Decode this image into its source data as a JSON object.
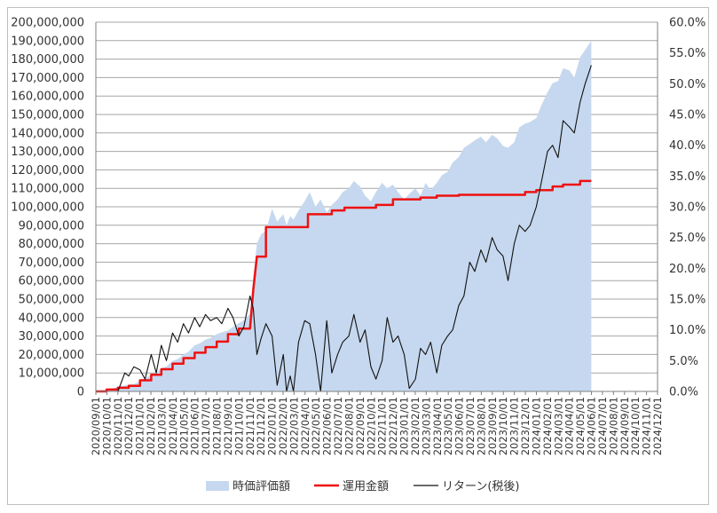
{
  "chart_data": {
    "type": "area",
    "title": "",
    "xlabel": "",
    "ylabel": "",
    "ylim": [
      0,
      200000000
    ],
    "y2lim": [
      0,
      0.6
    ],
    "grid": true,
    "legend_position": "bottom",
    "y_ticks": [
      "0",
      "10,000,000",
      "20,000,000",
      "30,000,000",
      "40,000,000",
      "50,000,000",
      "60,000,000",
      "70,000,000",
      "80,000,000",
      "90,000,000",
      "100,000,000",
      "110,000,000",
      "120,000,000",
      "130,000,000",
      "140,000,000",
      "150,000,000",
      "160,000,000",
      "170,000,000",
      "180,000,000",
      "190,000,000",
      "200,000,000"
    ],
    "y2_ticks": [
      "0.0%",
      "5.0%",
      "10.0%",
      "15.0%",
      "20.0%",
      "25.0%",
      "30.0%",
      "35.0%",
      "40.0%",
      "45.0%",
      "50.0%",
      "55.0%",
      "60.0%"
    ],
    "x_ticks": [
      "2020/09/01",
      "2020/10/01",
      "2020/11/01",
      "2020/12/01",
      "2021/01/01",
      "2021/02/01",
      "2021/03/01",
      "2021/04/01",
      "2021/05/01",
      "2021/06/01",
      "2021/07/01",
      "2021/08/01",
      "2021/09/01",
      "2021/10/01",
      "2021/11/01",
      "2021/12/01",
      "2022/01/01",
      "2022/02/01",
      "2022/03/01",
      "2022/04/01",
      "2022/05/01",
      "2022/06/01",
      "2022/07/01",
      "2022/08/01",
      "2022/09/01",
      "2022/10/01",
      "2022/11/01",
      "2022/12/01",
      "2023/01/01",
      "2023/02/01",
      "2023/03/01",
      "2023/04/01",
      "2023/05/01",
      "2023/06/01",
      "2023/07/01",
      "2023/08/01",
      "2023/09/01",
      "2023/10/01",
      "2023/11/01",
      "2023/12/01",
      "2024/01/01",
      "2024/02/01",
      "2024/03/01",
      "2024/04/01",
      "2024/05/01",
      "2024/06/01",
      "2024/07/01",
      "2024/08/01",
      "2024/09/01",
      "2024/10/01",
      "2024/11/01",
      "2024/12/01"
    ],
    "legend": [
      {
        "name": "時価評価額",
        "color": "#c6d8ef",
        "kind": "area"
      },
      {
        "name": "運用金額",
        "color": "#ee1111",
        "kind": "line"
      },
      {
        "name": "リターン(税後)",
        "color": "#111111",
        "kind": "line"
      }
    ],
    "series": [
      {
        "name": "時価評価額",
        "axis": "left",
        "points": [
          [
            "2020/09/01",
            0
          ],
          [
            "2020/09/15",
            500000
          ],
          [
            "2020/10/01",
            1000000
          ],
          [
            "2020/10/15",
            1500000
          ],
          [
            "2020/11/01",
            2500000
          ],
          [
            "2020/11/15",
            3000000
          ],
          [
            "2020/12/01",
            3800000
          ],
          [
            "2020/12/15",
            4000000
          ],
          [
            "2021/01/01",
            5500000
          ],
          [
            "2021/01/15",
            7000000
          ],
          [
            "2021/02/01",
            9000000
          ],
          [
            "2021/02/15",
            10000000
          ],
          [
            "2021/03/01",
            12500000
          ],
          [
            "2021/03/15",
            13500000
          ],
          [
            "2021/04/01",
            16500000
          ],
          [
            "2021/04/15",
            17500000
          ],
          [
            "2021/05/01",
            20000000
          ],
          [
            "2021/05/15",
            21500000
          ],
          [
            "2021/06/01",
            25000000
          ],
          [
            "2021/06/15",
            26000000
          ],
          [
            "2021/07/01",
            28000000
          ],
          [
            "2021/07/15",
            29000000
          ],
          [
            "2021/08/01",
            31000000
          ],
          [
            "2021/08/15",
            32000000
          ],
          [
            "2021/09/01",
            33000000
          ],
          [
            "2021/09/15",
            35000000
          ],
          [
            "2021/10/01",
            37000000
          ],
          [
            "2021/10/15",
            38500000
          ],
          [
            "2021/11/01",
            42000000
          ],
          [
            "2021/11/10",
            62000000
          ],
          [
            "2021/11/20",
            80000000
          ],
          [
            "2021/12/01",
            85000000
          ],
          [
            "2021/12/15",
            87000000
          ],
          [
            "2022/01/01",
            99000000
          ],
          [
            "2022/01/15",
            92000000
          ],
          [
            "2022/02/01",
            96000000
          ],
          [
            "2022/02/10",
            90000000
          ],
          [
            "2022/02/20",
            95000000
          ],
          [
            "2022/03/01",
            93000000
          ],
          [
            "2022/03/15",
            98000000
          ],
          [
            "2022/04/01",
            103000000
          ],
          [
            "2022/04/15",
            108000000
          ],
          [
            "2022/05/01",
            100000000
          ],
          [
            "2022/05/15",
            104000000
          ],
          [
            "2022/06/01",
            97000000
          ],
          [
            "2022/06/15",
            101000000
          ],
          [
            "2022/07/01",
            104000000
          ],
          [
            "2022/07/15",
            108000000
          ],
          [
            "2022/08/01",
            110000000
          ],
          [
            "2022/08/15",
            114000000
          ],
          [
            "2022/09/01",
            111000000
          ],
          [
            "2022/09/15",
            106000000
          ],
          [
            "2022/10/01",
            103000000
          ],
          [
            "2022/10/15",
            108000000
          ],
          [
            "2022/11/01",
            113000000
          ],
          [
            "2022/11/15",
            110000000
          ],
          [
            "2022/12/01",
            112000000
          ],
          [
            "2022/12/15",
            108000000
          ],
          [
            "2023/01/01",
            104000000
          ],
          [
            "2023/01/15",
            107000000
          ],
          [
            "2023/02/01",
            110000000
          ],
          [
            "2023/02/15",
            106000000
          ],
          [
            "2023/03/01",
            113000000
          ],
          [
            "2023/03/15",
            109000000
          ],
          [
            "2023/04/01",
            113000000
          ],
          [
            "2023/04/15",
            117000000
          ],
          [
            "2023/05/01",
            119000000
          ],
          [
            "2023/05/15",
            124000000
          ],
          [
            "2023/06/01",
            127000000
          ],
          [
            "2023/06/15",
            132000000
          ],
          [
            "2023/07/01",
            134000000
          ],
          [
            "2023/07/15",
            136000000
          ],
          [
            "2023/08/01",
            138000000
          ],
          [
            "2023/08/15",
            135000000
          ],
          [
            "2023/09/01",
            139000000
          ],
          [
            "2023/09/15",
            137000000
          ],
          [
            "2023/10/01",
            133000000
          ],
          [
            "2023/10/15",
            132000000
          ],
          [
            "2023/11/01",
            135000000
          ],
          [
            "2023/11/15",
            143000000
          ],
          [
            "2023/12/01",
            145000000
          ],
          [
            "2023/12/15",
            146000000
          ],
          [
            "2024/01/01",
            148000000
          ],
          [
            "2024/01/15",
            155000000
          ],
          [
            "2024/02/01",
            162000000
          ],
          [
            "2024/02/15",
            167000000
          ],
          [
            "2024/03/01",
            168000000
          ],
          [
            "2024/03/15",
            175000000
          ],
          [
            "2024/04/01",
            174000000
          ],
          [
            "2024/04/15",
            170000000
          ],
          [
            "2024/05/01",
            181000000
          ],
          [
            "2024/05/15",
            185000000
          ],
          [
            "2024/06/01",
            190000000
          ]
        ]
      },
      {
        "name": "運用金額",
        "axis": "left",
        "points": [
          [
            "2020/09/01",
            0
          ],
          [
            "2020/10/01",
            0
          ],
          [
            "2020/10/01",
            1000000
          ],
          [
            "2020/11/01",
            1000000
          ],
          [
            "2020/11/01",
            2000000
          ],
          [
            "2020/12/01",
            2000000
          ],
          [
            "2020/12/01",
            3000000
          ],
          [
            "2021/01/01",
            3000000
          ],
          [
            "2021/01/01",
            6000000
          ],
          [
            "2021/02/01",
            6000000
          ],
          [
            "2021/02/01",
            9000000
          ],
          [
            "2021/03/01",
            9000000
          ],
          [
            "2021/03/01",
            12000000
          ],
          [
            "2021/04/01",
            12000000
          ],
          [
            "2021/04/01",
            15000000
          ],
          [
            "2021/05/01",
            15000000
          ],
          [
            "2021/05/01",
            18000000
          ],
          [
            "2021/06/01",
            18000000
          ],
          [
            "2021/06/01",
            21000000
          ],
          [
            "2021/07/01",
            21000000
          ],
          [
            "2021/07/01",
            24000000
          ],
          [
            "2021/08/01",
            24000000
          ],
          [
            "2021/08/01",
            27000000
          ],
          [
            "2021/09/01",
            27000000
          ],
          [
            "2021/09/01",
            31000000
          ],
          [
            "2021/10/01",
            31000000
          ],
          [
            "2021/10/01",
            34000000
          ],
          [
            "2021/11/01",
            34000000
          ],
          [
            "2021/11/10",
            55000000
          ],
          [
            "2021/11/20",
            73000000
          ],
          [
            "2021/12/01",
            73000000
          ],
          [
            "2021/12/15",
            73000000
          ],
          [
            "2021/12/15",
            89000000
          ],
          [
            "2022/04/10",
            89000000
          ],
          [
            "2022/04/10",
            96000000
          ],
          [
            "2022/06/15",
            96000000
          ],
          [
            "2022/06/15",
            98000000
          ],
          [
            "2022/07/20",
            98000000
          ],
          [
            "2022/07/20",
            99500000
          ],
          [
            "2022/10/15",
            99500000
          ],
          [
            "2022/10/15",
            101000000
          ],
          [
            "2022/12/01",
            101000000
          ],
          [
            "2022/12/01",
            104000000
          ],
          [
            "2023/02/15",
            104000000
          ],
          [
            "2023/02/15",
            105000000
          ],
          [
            "2023/04/01",
            105000000
          ],
          [
            "2023/04/01",
            106000000
          ],
          [
            "2023/06/01",
            106000000
          ],
          [
            "2023/06/01",
            106500000
          ],
          [
            "2023/12/01",
            106500000
          ],
          [
            "2023/12/01",
            108000000
          ],
          [
            "2024/01/01",
            108000000
          ],
          [
            "2024/01/01",
            109000000
          ],
          [
            "2024/02/15",
            109000000
          ],
          [
            "2024/02/15",
            111000000
          ],
          [
            "2024/03/15",
            111000000
          ],
          [
            "2024/03/15",
            112000000
          ],
          [
            "2024/05/01",
            112000000
          ],
          [
            "2024/05/01",
            114000000
          ],
          [
            "2024/06/01",
            114000000
          ]
        ]
      },
      {
        "name": "リターン(税後)",
        "axis": "right",
        "points": [
          [
            "2020/09/01",
            0.0
          ],
          [
            "2020/11/01",
            0.0
          ],
          [
            "2020/11/20",
            0.03
          ],
          [
            "2020/12/01",
            0.025
          ],
          [
            "2020/12/15",
            0.04
          ],
          [
            "2021/01/01",
            0.035
          ],
          [
            "2021/01/15",
            0.02
          ],
          [
            "2021/02/01",
            0.06
          ],
          [
            "2021/02/15",
            0.03
          ],
          [
            "2021/03/01",
            0.075
          ],
          [
            "2021/03/15",
            0.05
          ],
          [
            "2021/04/01",
            0.095
          ],
          [
            "2021/04/15",
            0.08
          ],
          [
            "2021/05/01",
            0.11
          ],
          [
            "2021/05/15",
            0.095
          ],
          [
            "2021/06/01",
            0.12
          ],
          [
            "2021/06/15",
            0.105
          ],
          [
            "2021/07/01",
            0.125
          ],
          [
            "2021/07/15",
            0.115
          ],
          [
            "2021/08/01",
            0.12
          ],
          [
            "2021/08/15",
            0.11
          ],
          [
            "2021/09/01",
            0.135
          ],
          [
            "2021/09/15",
            0.12
          ],
          [
            "2021/10/01",
            0.09
          ],
          [
            "2021/10/15",
            0.105
          ],
          [
            "2021/11/01",
            0.155
          ],
          [
            "2021/11/10",
            0.135
          ],
          [
            "2021/11/20",
            0.06
          ],
          [
            "2021/12/01",
            0.085
          ],
          [
            "2021/12/15",
            0.11
          ],
          [
            "2022/01/01",
            0.09
          ],
          [
            "2022/01/15",
            0.01
          ],
          [
            "2022/02/01",
            0.06
          ],
          [
            "2022/02/10",
            0.0
          ],
          [
            "2022/02/20",
            0.025
          ],
          [
            "2022/03/01",
            0.0
          ],
          [
            "2022/03/15",
            0.08
          ],
          [
            "2022/04/01",
            0.115
          ],
          [
            "2022/04/15",
            0.11
          ],
          [
            "2022/05/01",
            0.06
          ],
          [
            "2022/05/15",
            0.0
          ],
          [
            "2022/06/01",
            0.115
          ],
          [
            "2022/06/15",
            0.03
          ],
          [
            "2022/07/01",
            0.06
          ],
          [
            "2022/07/15",
            0.08
          ],
          [
            "2022/08/01",
            0.09
          ],
          [
            "2022/08/15",
            0.125
          ],
          [
            "2022/09/01",
            0.08
          ],
          [
            "2022/09/15",
            0.1
          ],
          [
            "2022/10/01",
            0.04
          ],
          [
            "2022/10/15",
            0.02
          ],
          [
            "2022/11/01",
            0.05
          ],
          [
            "2022/11/15",
            0.12
          ],
          [
            "2022/12/01",
            0.08
          ],
          [
            "2022/12/15",
            0.09
          ],
          [
            "2023/01/01",
            0.06
          ],
          [
            "2023/01/15",
            0.005
          ],
          [
            "2023/02/01",
            0.02
          ],
          [
            "2023/02/15",
            0.07
          ],
          [
            "2023/03/01",
            0.06
          ],
          [
            "2023/03/15",
            0.08
          ],
          [
            "2023/04/01",
            0.03
          ],
          [
            "2023/04/15",
            0.075
          ],
          [
            "2023/05/01",
            0.09
          ],
          [
            "2023/05/15",
            0.1
          ],
          [
            "2023/06/01",
            0.14
          ],
          [
            "2023/06/15",
            0.155
          ],
          [
            "2023/07/01",
            0.21
          ],
          [
            "2023/07/15",
            0.195
          ],
          [
            "2023/08/01",
            0.23
          ],
          [
            "2023/08/15",
            0.21
          ],
          [
            "2023/09/01",
            0.25
          ],
          [
            "2023/09/15",
            0.23
          ],
          [
            "2023/10/01",
            0.22
          ],
          [
            "2023/10/15",
            0.18
          ],
          [
            "2023/11/01",
            0.24
          ],
          [
            "2023/11/15",
            0.27
          ],
          [
            "2023/12/01",
            0.26
          ],
          [
            "2023/12/15",
            0.27
          ],
          [
            "2024/01/01",
            0.3
          ],
          [
            "2024/01/15",
            0.34
          ],
          [
            "2024/02/01",
            0.39
          ],
          [
            "2024/02/15",
            0.4
          ],
          [
            "2024/03/01",
            0.38
          ],
          [
            "2024/03/15",
            0.44
          ],
          [
            "2024/04/01",
            0.43
          ],
          [
            "2024/04/15",
            0.42
          ],
          [
            "2024/05/01",
            0.47
          ],
          [
            "2024/05/15",
            0.5
          ],
          [
            "2024/06/01",
            0.53
          ]
        ]
      }
    ]
  }
}
